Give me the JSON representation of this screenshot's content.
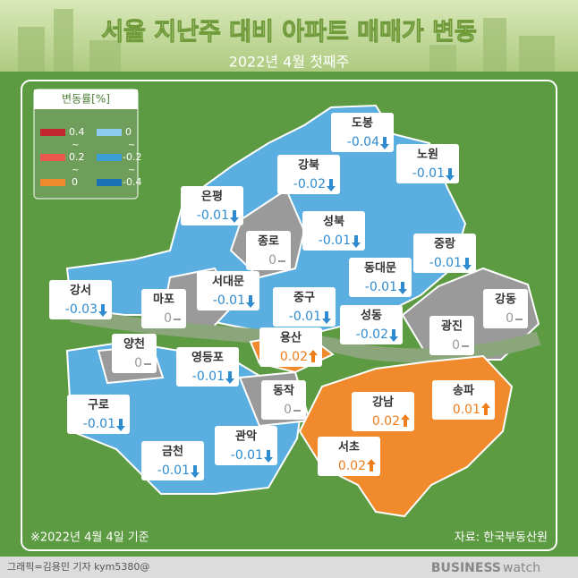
{
  "header": {
    "title": "서울 지난주 대비 아파트 매매가 변동",
    "subtitle": "2022년 4월 첫째주"
  },
  "legend": {
    "title": "변동률[%]",
    "separator": "~",
    "rise": [
      "0.4",
      "0.2",
      "0"
    ],
    "fall": [
      "0",
      "-0.2",
      "-0.4"
    ]
  },
  "districts": [
    {
      "name": "도봉",
      "value": "-0.04"
    },
    {
      "name": "노원",
      "value": "-0.01"
    },
    {
      "name": "강북",
      "value": "-0.02"
    },
    {
      "name": "은평",
      "value": "-0.01"
    },
    {
      "name": "성북",
      "value": "-0.01"
    },
    {
      "name": "종로",
      "value": "0"
    },
    {
      "name": "중랑",
      "value": "-0.01"
    },
    {
      "name": "강서",
      "value": "-0.03"
    },
    {
      "name": "마포",
      "value": "0"
    },
    {
      "name": "서대문",
      "value": "-0.01"
    },
    {
      "name": "중구",
      "value": "-0.01"
    },
    {
      "name": "동대문",
      "value": "-0.01"
    },
    {
      "name": "강동",
      "value": "0"
    },
    {
      "name": "성동",
      "value": "-0.02"
    },
    {
      "name": "광진",
      "value": "0"
    },
    {
      "name": "용산",
      "value": "0.02"
    },
    {
      "name": "양천",
      "value": "0"
    },
    {
      "name": "영등포",
      "value": "-0.01"
    },
    {
      "name": "동작",
      "value": "0"
    },
    {
      "name": "강남",
      "value": "0.02"
    },
    {
      "name": "송파",
      "value": "0.01"
    },
    {
      "name": "구로",
      "value": "-0.01"
    },
    {
      "name": "서초",
      "value": "0.02"
    },
    {
      "name": "관악",
      "value": "-0.01"
    },
    {
      "name": "금천",
      "value": "-0.01"
    }
  ],
  "footer": {
    "note": "※2022년 4월 4일 기준",
    "source": "자료: 한국부동산원",
    "credit": "그래픽=김용민 기자 kym5380@",
    "logo_bold": "BUSINESS",
    "logo_light": "watch"
  }
}
